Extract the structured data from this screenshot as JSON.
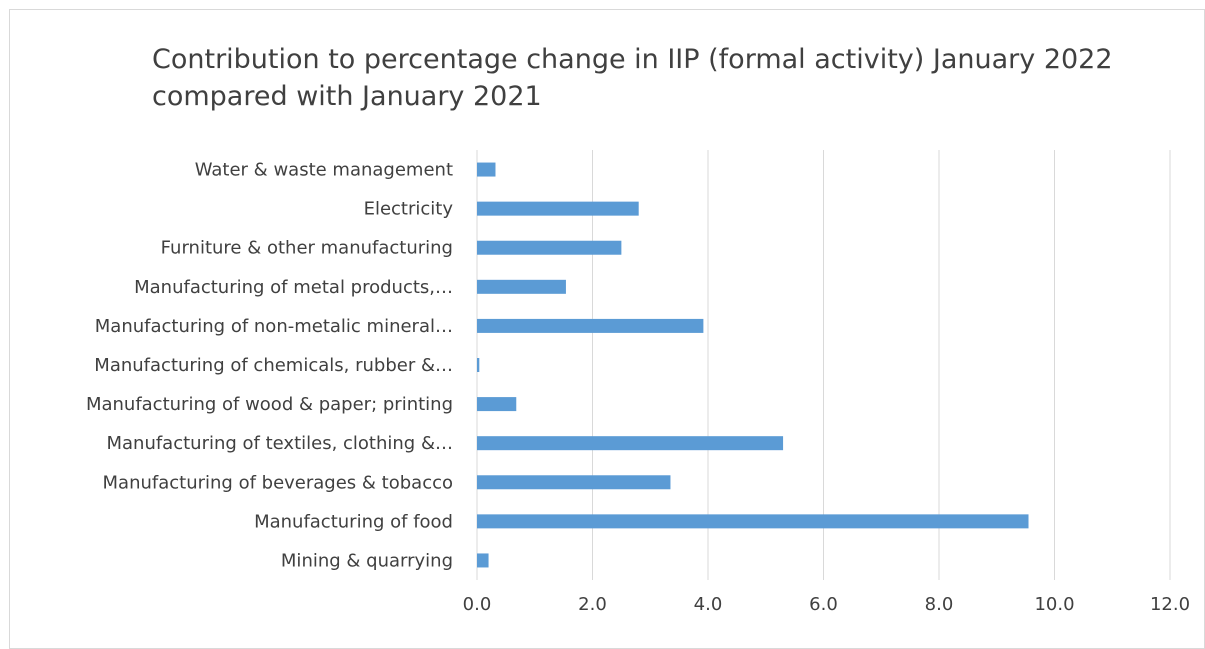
{
  "chart_data": {
    "type": "bar",
    "orientation": "horizontal",
    "title": "Contribution to percentage change in IIP (formal activity) January 2022 compared with January 2021",
    "categories": [
      "Mining & quarrying",
      "Manufacturing of food",
      "Manufacturing of beverages & tobacco",
      "Manufacturing of textiles, clothing &…",
      "Manufacturing of wood & paper; printing",
      "Manufacturing of chemicals, rubber &…",
      "Manufacturing of non-metalic mineral…",
      "Manufacturing of metal products,…",
      "Furniture & other manufacturing",
      "Electricity",
      "Water & waste management"
    ],
    "values": [
      0.2,
      9.55,
      3.35,
      5.3,
      0.68,
      0.04,
      3.92,
      1.54,
      2.5,
      2.8,
      0.32
    ],
    "xlabel": "",
    "ylabel": "",
    "xlim": [
      0,
      12
    ],
    "x_ticks": [
      "0.0",
      "2.0",
      "4.0",
      "6.0",
      "8.0",
      "10.0",
      "12.0"
    ],
    "x_tick_values": [
      0,
      2,
      4,
      6,
      8,
      10,
      12
    ],
    "grid": "vertical",
    "legend": "none",
    "colors": {
      "bar": "#5b9bd5",
      "grid": "#d9d9d9",
      "text": "#404040"
    }
  }
}
